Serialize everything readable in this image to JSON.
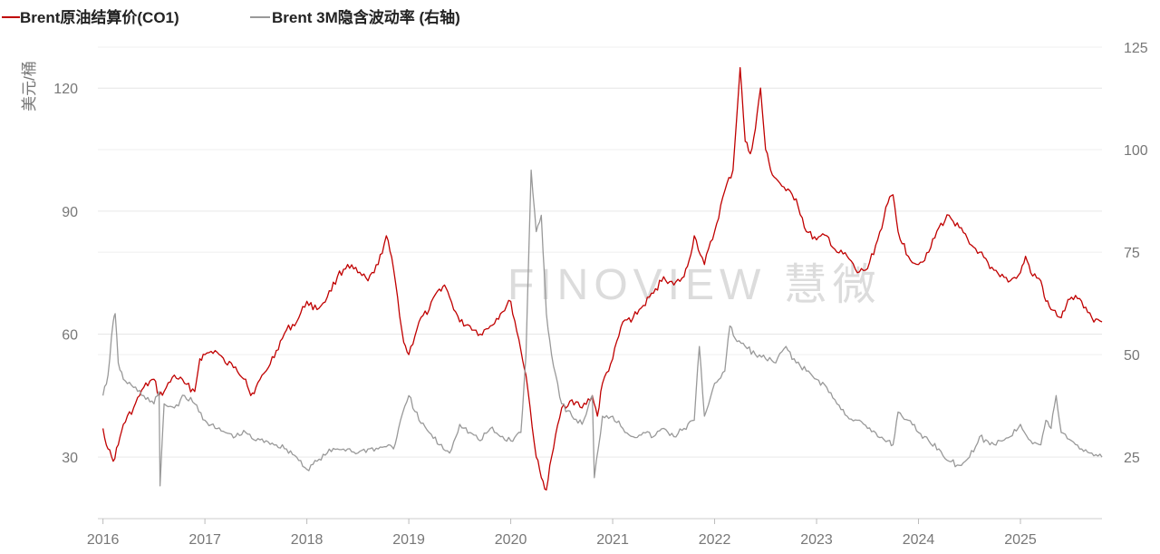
{
  "chart_data": {
    "type": "line",
    "title": "",
    "watermark": "FINOVIEW 慧微",
    "left_axis": {
      "label": "美元/桶",
      "ticks": [
        30,
        60,
        90,
        120
      ],
      "range": [
        15,
        130
      ]
    },
    "right_axis": {
      "label": "",
      "ticks": [
        25,
        50,
        75,
        100,
        125
      ],
      "range": [
        10,
        125
      ]
    },
    "x_axis": {
      "ticks": [
        "2016",
        "2017",
        "2018",
        "2019",
        "2020",
        "2021",
        "2022",
        "2023",
        "2024",
        "2025"
      ],
      "range": [
        2015.95,
        2025.8
      ]
    },
    "legend": {
      "placement": "top-left"
    },
    "grid": true,
    "series": [
      {
        "name": "Brent原油结算价(CO1)",
        "axis": "left",
        "color": "#c00000",
        "x": [
          2016.0,
          2016.05,
          2016.1,
          2016.15,
          2016.2,
          2016.3,
          2016.4,
          2016.5,
          2016.55,
          2016.6,
          2016.7,
          2016.8,
          2016.9,
          2016.95,
          2017.0,
          2017.1,
          2017.2,
          2017.3,
          2017.4,
          2017.45,
          2017.5,
          2017.6,
          2017.7,
          2017.8,
          2017.9,
          2018.0,
          2018.1,
          2018.2,
          2018.3,
          2018.4,
          2018.5,
          2018.6,
          2018.7,
          2018.78,
          2018.85,
          2018.95,
          2019.0,
          2019.1,
          2019.2,
          2019.3,
          2019.35,
          2019.4,
          2019.5,
          2019.6,
          2019.7,
          2019.8,
          2019.9,
          2020.0,
          2020.1,
          2020.15,
          2020.25,
          2020.3,
          2020.35,
          2020.4,
          2020.5,
          2020.6,
          2020.7,
          2020.8,
          2020.85,
          2020.9,
          2021.0,
          2021.1,
          2021.2,
          2021.3,
          2021.4,
          2021.5,
          2021.6,
          2021.7,
          2021.75,
          2021.8,
          2021.9,
          2022.0,
          2022.1,
          2022.18,
          2022.25,
          2022.3,
          2022.35,
          2022.4,
          2022.45,
          2022.5,
          2022.55,
          2022.6,
          2022.7,
          2022.8,
          2022.9,
          2023.0,
          2023.1,
          2023.2,
          2023.3,
          2023.4,
          2023.5,
          2023.6,
          2023.7,
          2023.75,
          2023.8,
          2023.9,
          2024.0,
          2024.1,
          2024.2,
          2024.3,
          2024.4,
          2024.5,
          2024.6,
          2024.7,
          2024.8,
          2024.9,
          2025.0,
          2025.05,
          2025.1,
          2025.2,
          2025.25,
          2025.3,
          2025.4,
          2025.45,
          2025.5,
          2025.6,
          2025.7,
          2025.8
        ],
        "values": [
          37,
          32,
          29,
          33,
          38,
          42,
          47,
          49,
          45,
          46,
          50,
          48,
          46,
          54,
          55,
          56,
          53,
          52,
          49,
          45,
          47,
          51,
          56,
          61,
          63,
          68,
          66,
          69,
          74,
          77,
          75,
          73,
          77,
          84,
          76,
          58,
          55,
          63,
          66,
          71,
          72,
          69,
          63,
          62,
          60,
          62,
          65,
          68,
          56,
          50,
          30,
          25,
          22,
          30,
          42,
          44,
          42,
          45,
          40,
          48,
          54,
          63,
          64,
          67,
          70,
          74,
          72,
          74,
          78,
          84,
          77,
          85,
          95,
          100,
          125,
          107,
          104,
          110,
          120,
          105,
          100,
          98,
          95,
          93,
          85,
          83,
          84,
          80,
          79,
          75,
          76,
          83,
          92,
          94,
          85,
          79,
          77,
          80,
          86,
          89,
          86,
          82,
          80,
          76,
          74,
          73,
          75,
          79,
          75,
          73,
          68,
          66,
          64,
          67,
          69,
          68,
          64,
          63
        ]
      },
      {
        "name": "Brent 3M隐含波动率 (右轴)",
        "axis": "right",
        "color": "#999999",
        "x": [
          2016.0,
          2016.05,
          2016.1,
          2016.12,
          2016.15,
          2016.2,
          2016.3,
          2016.4,
          2016.5,
          2016.55,
          2016.56,
          2016.6,
          2016.7,
          2016.8,
          2016.9,
          2017.0,
          2017.1,
          2017.2,
          2017.3,
          2017.4,
          2017.5,
          2017.6,
          2017.7,
          2017.8,
          2017.9,
          2018.0,
          2018.1,
          2018.2,
          2018.3,
          2018.4,
          2018.5,
          2018.6,
          2018.7,
          2018.8,
          2018.85,
          2018.9,
          2019.0,
          2019.1,
          2019.2,
          2019.3,
          2019.4,
          2019.5,
          2019.6,
          2019.7,
          2019.8,
          2019.9,
          2020.0,
          2020.1,
          2020.15,
          2020.2,
          2020.25,
          2020.3,
          2020.35,
          2020.4,
          2020.5,
          2020.6,
          2020.7,
          2020.8,
          2020.82,
          2020.9,
          2021.0,
          2021.1,
          2021.2,
          2021.3,
          2021.4,
          2021.5,
          2021.6,
          2021.7,
          2021.8,
          2021.85,
          2021.9,
          2022.0,
          2022.1,
          2022.15,
          2022.2,
          2022.3,
          2022.4,
          2022.5,
          2022.6,
          2022.7,
          2022.8,
          2022.9,
          2023.0,
          2023.1,
          2023.2,
          2023.3,
          2023.4,
          2023.5,
          2023.6,
          2023.7,
          2023.75,
          2023.8,
          2023.9,
          2024.0,
          2024.1,
          2024.2,
          2024.3,
          2024.4,
          2024.5,
          2024.6,
          2024.7,
          2024.8,
          2024.9,
          2025.0,
          2025.1,
          2025.2,
          2025.25,
          2025.3,
          2025.35,
          2025.4,
          2025.5,
          2025.6,
          2025.7,
          2025.8
        ],
        "values": [
          40,
          45,
          58,
          60,
          48,
          44,
          42,
          40,
          38,
          41,
          18,
          38,
          37,
          40,
          38,
          34,
          32,
          31,
          30,
          31,
          29,
          29,
          28,
          27,
          25,
          22,
          24,
          26,
          27,
          27,
          26,
          27,
          27,
          28,
          27,
          32,
          40,
          34,
          31,
          28,
          26,
          33,
          31,
          29,
          32,
          30,
          29,
          31,
          50,
          95,
          80,
          84,
          60,
          50,
          38,
          35,
          33,
          40,
          20,
          35,
          35,
          32,
          30,
          31,
          30,
          32,
          30,
          32,
          34,
          52,
          35,
          43,
          46,
          57,
          54,
          52,
          50,
          49,
          48,
          52,
          48,
          46,
          44,
          42,
          38,
          35,
          34,
          32,
          30,
          29,
          28,
          36,
          34,
          31,
          29,
          27,
          24,
          23,
          25,
          30,
          28,
          29,
          30,
          33,
          29,
          28,
          34,
          32,
          40,
          31,
          29,
          27,
          26,
          25
        ]
      }
    ]
  }
}
